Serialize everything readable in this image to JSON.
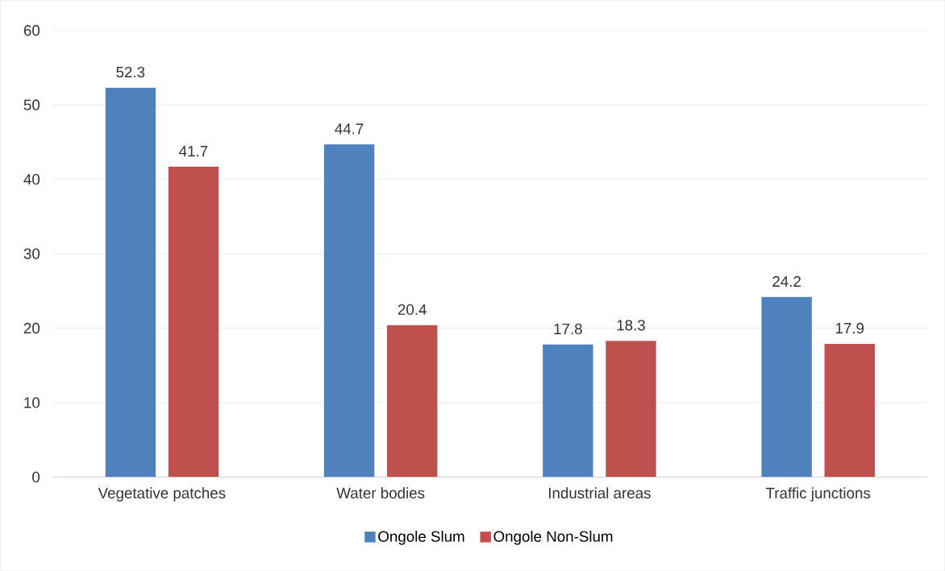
{
  "chart_data": {
    "type": "bar",
    "categories": [
      "Vegetative patches",
      "Water bodies",
      "Industrial areas",
      "Traffic junctions"
    ],
    "series": [
      {
        "name": "Ongole Slum",
        "color": "#4f81bd",
        "values": [
          52.3,
          44.7,
          17.8,
          24.2
        ]
      },
      {
        "name": "Ongole Non-Slum",
        "color": "#c0504d",
        "values": [
          41.7,
          20.4,
          18.3,
          17.9
        ]
      }
    ],
    "ylim": [
      0,
      60
    ],
    "yticks": [
      0,
      10,
      20,
      30,
      40,
      50,
      60
    ],
    "grid": "y",
    "legend": "bottom",
    "data_labels": true
  }
}
